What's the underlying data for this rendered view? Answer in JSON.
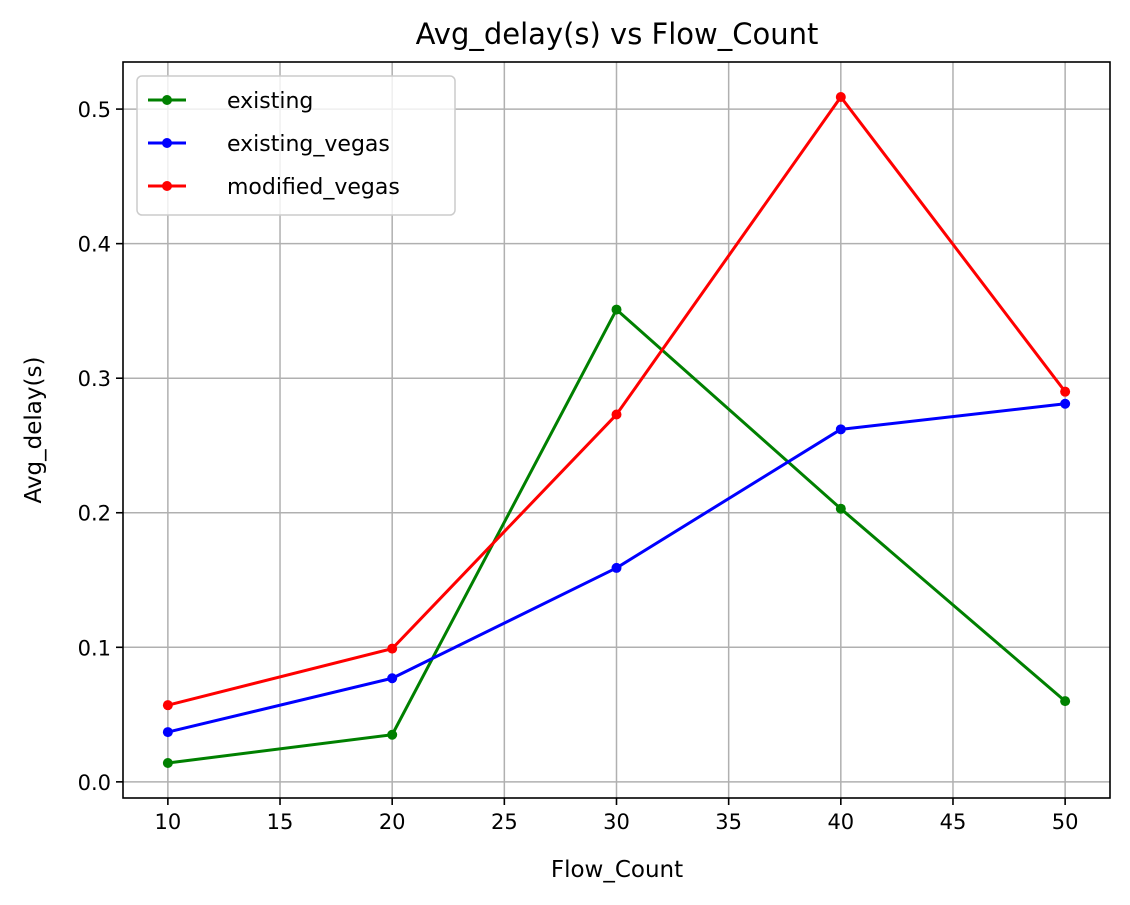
{
  "chart_data": {
    "type": "line",
    "title": "Avg_delay(s) vs Flow_Count",
    "xlabel": "Flow_Count",
    "ylabel": "Avg_delay(s)",
    "x": [
      10,
      20,
      30,
      40,
      50
    ],
    "xlim": [
      8,
      52
    ],
    "ylim": [
      -0.012,
      0.535
    ],
    "xticks": [
      10,
      15,
      20,
      25,
      30,
      35,
      40,
      45,
      50
    ],
    "yticks": [
      0.0,
      0.1,
      0.2,
      0.3,
      0.4,
      0.5
    ],
    "xtick_labels": [
      "10",
      "15",
      "20",
      "25",
      "30",
      "35",
      "40",
      "45",
      "50"
    ],
    "ytick_labels": [
      "0.0",
      "0.1",
      "0.2",
      "0.3",
      "0.4",
      "0.5"
    ],
    "grid": true,
    "legend_position": "top-left",
    "series": [
      {
        "name": "existing",
        "color": "#008000",
        "values": [
          0.014,
          0.035,
          0.351,
          0.203,
          0.06
        ]
      },
      {
        "name": "existing_vegas",
        "color": "#0000ff",
        "values": [
          0.037,
          0.077,
          0.159,
          0.262,
          0.281
        ]
      },
      {
        "name": "modified_vegas",
        "color": "#ff0000",
        "values": [
          0.057,
          0.099,
          0.273,
          0.509,
          0.29
        ]
      }
    ]
  }
}
